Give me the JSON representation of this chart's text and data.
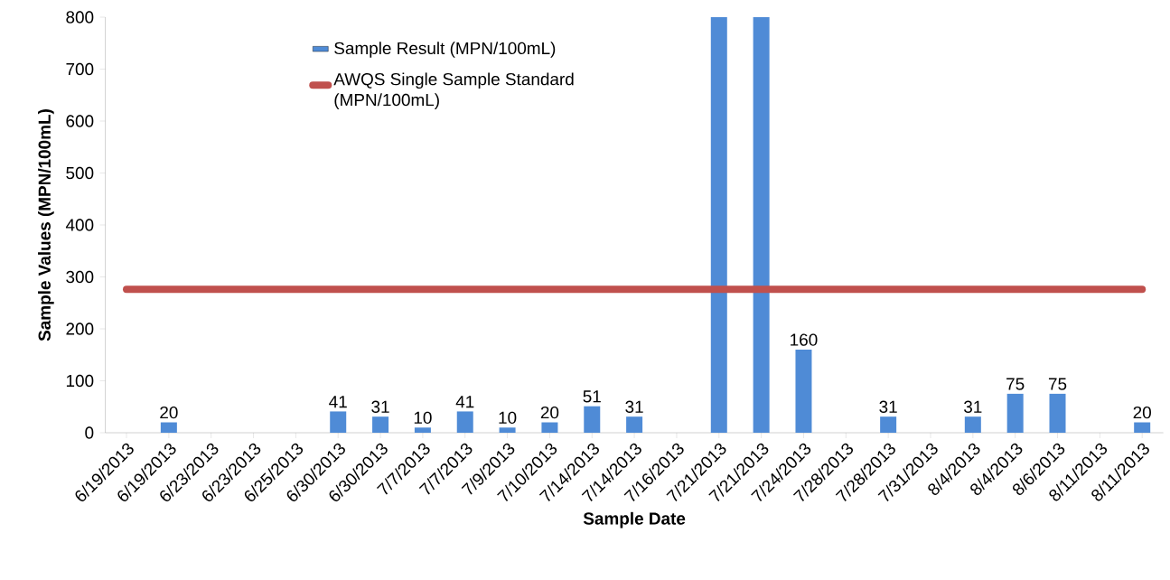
{
  "chart_data": {
    "type": "bar",
    "xlabel": "Sample Date",
    "ylabel": "Sample Values (MPN/100mL)",
    "categories": [
      "6/19/2013",
      "6/19/2013",
      "6/23/2013",
      "6/23/2013",
      "6/25/2013",
      "6/30/2013",
      "6/30/2013",
      "7/7/2013",
      "7/7/2013",
      "7/9/2013",
      "7/10/2013",
      "7/14/2013",
      "7/14/2013",
      "7/16/2013",
      "7/21/2013",
      "7/21/2013",
      "7/24/2013",
      "7/28/2013",
      "7/28/2013",
      "7/31/2013",
      "8/4/2013",
      "8/4/2013",
      "8/6/2013",
      "8/11/2013",
      "8/11/2013"
    ],
    "series": [
      {
        "name": "Sample Result (MPN/100mL)",
        "color": "#4f8bd6",
        "values": [
          null,
          20,
          null,
          null,
          null,
          41,
          31,
          10,
          41,
          10,
          20,
          51,
          31,
          null,
          800,
          800,
          160,
          null,
          31,
          null,
          31,
          75,
          75,
          null,
          20
        ],
        "value_labels": [
          null,
          "20",
          null,
          null,
          null,
          "41",
          "31",
          "10",
          "41",
          "10",
          "20",
          "51",
          "31",
          null,
          null,
          null,
          "160",
          null,
          "31",
          null,
          "31",
          "75",
          "75",
          null,
          "20"
        ]
      },
      {
        "name": "AWQS Single Sample Standard (MPN/100mL)",
        "type": "line",
        "color": "#c0504d",
        "values": [
          276,
          276,
          276,
          276,
          276,
          276,
          276,
          276,
          276,
          276,
          276,
          276,
          276,
          276,
          276,
          276,
          276,
          276,
          276,
          276,
          276,
          276,
          276,
          276,
          276
        ]
      }
    ],
    "ylim": [
      0,
      800
    ],
    "yticks": [
      0,
      100,
      200,
      300,
      400,
      500,
      600,
      700,
      800
    ],
    "grid": false,
    "legend": "top left",
    "marker": "none"
  }
}
